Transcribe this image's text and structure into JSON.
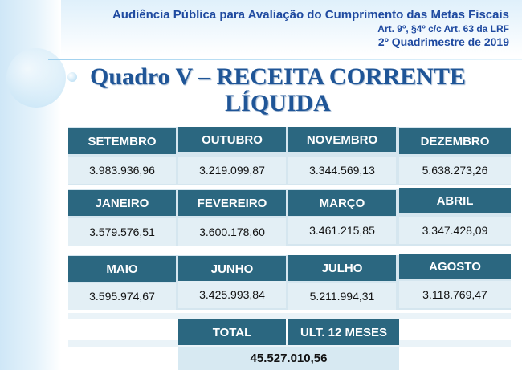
{
  "header": {
    "line1": "Audiência Pública para Avaliação do Cumprimento das Metas Fiscais",
    "line2": "Art. 9º, §4º c/c Art. 63 da LRF",
    "line3": "2º Quadrimestre de 2019"
  },
  "title": {
    "line1": "Quadro V – RECEITA CORRENTE",
    "line2": "LÍQUIDA"
  },
  "months": [
    {
      "label": "SETEMBRO",
      "value": "3.983.936,96"
    },
    {
      "label": "OUTUBRO",
      "value": "3.219.099,87"
    },
    {
      "label": "NOVEMBRO",
      "value": "3.344.569,13"
    },
    {
      "label": "DEZEMBRO",
      "value": "5.638.273,26"
    },
    {
      "label": "JANEIRO",
      "value": "3.579.576,51"
    },
    {
      "label": "FEVEREIRO",
      "value": "3.600.178,60"
    },
    {
      "label": "MARÇO",
      "value": "3.461.215,85"
    },
    {
      "label": "ABRIL",
      "value": "3.347.428,09"
    },
    {
      "label": "MAIO",
      "value": "3.595.974,67"
    },
    {
      "label": "JUNHO",
      "value": "3.425.993,84"
    },
    {
      "label": "JULHO",
      "value": "5.211.994,31"
    },
    {
      "label": "AGOSTO",
      "value": "3.118.769,47"
    }
  ],
  "total": {
    "label": "TOTAL",
    "period_label": "ULT. 12 MESES",
    "value": "45.527.010,56"
  }
}
